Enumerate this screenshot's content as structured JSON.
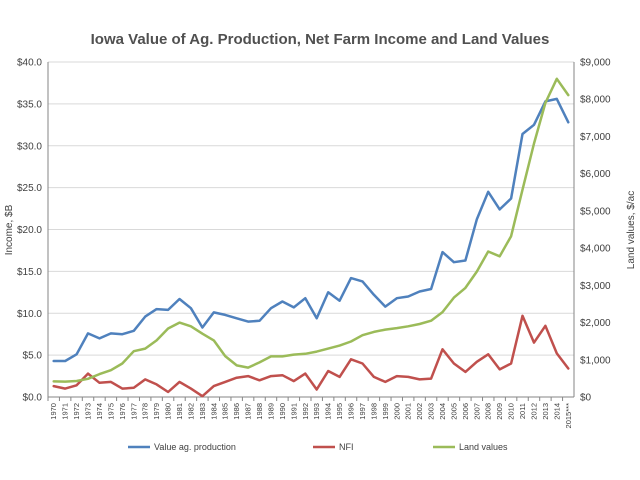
{
  "chart_data": {
    "type": "line",
    "title": "Iowa Value of Ag. Production, Net Farm Income and Land Values",
    "ylabel_left": "Income, $B",
    "ylabel_right": "Land values, $/ac",
    "ylim_left": [
      0,
      40
    ],
    "ylim_right": [
      0,
      9000
    ],
    "yticks_left": [
      "$0.0",
      "$5.0",
      "$10.0",
      "$15.0",
      "$20.0",
      "$25.0",
      "$30.0",
      "$35.0",
      "$40.0"
    ],
    "yticks_right": [
      "$0",
      "$1,000",
      "$2,000",
      "$3,000",
      "$4,000",
      "$5,000",
      "$6,000",
      "$7,000",
      "$8,000",
      "$9,000"
    ],
    "grid": true,
    "legend_position": "bottom",
    "categories": [
      "1970",
      "1971",
      "1972",
      "1973",
      "1974",
      "1975",
      "1976",
      "1977",
      "1978",
      "1979",
      "1980",
      "1981",
      "1982",
      "1983",
      "1984",
      "1985",
      "1986",
      "1987",
      "1988",
      "1989",
      "1990",
      "1991",
      "1992",
      "1993",
      "1994",
      "1995",
      "1996",
      "1997",
      "1998",
      "1999",
      "2000",
      "2001",
      "2002",
      "2003",
      "2004",
      "2005",
      "2006",
      "2007",
      "2008",
      "2009",
      "2010",
      "2011",
      "2012",
      "2013",
      "2014",
      "2015***"
    ],
    "series": [
      {
        "name": "Value ag. production",
        "axis": "left",
        "color": "#4f81bd",
        "values": [
          4.3,
          4.3,
          5.1,
          7.6,
          7.0,
          7.6,
          7.5,
          7.9,
          9.6,
          10.5,
          10.4,
          11.7,
          10.6,
          8.3,
          10.1,
          9.8,
          9.4,
          9.0,
          9.1,
          10.6,
          11.4,
          10.7,
          11.8,
          9.4,
          12.5,
          11.5,
          14.2,
          13.8,
          12.2,
          10.8,
          11.8,
          12.0,
          12.6,
          12.9,
          17.3,
          16.1,
          16.3,
          21.2,
          24.5,
          22.4,
          23.7,
          31.4,
          32.5,
          35.3,
          35.6,
          32.8
        ]
      },
      {
        "name": "NFI",
        "axis": "left",
        "color": "#c0504d",
        "values": [
          1.3,
          1.0,
          1.4,
          2.8,
          1.7,
          1.8,
          1.0,
          1.1,
          2.1,
          1.5,
          0.6,
          1.8,
          1.0,
          0.1,
          1.3,
          1.8,
          2.3,
          2.5,
          2.0,
          2.5,
          2.6,
          1.9,
          2.8,
          0.9,
          3.1,
          2.4,
          4.5,
          4.0,
          2.4,
          1.8,
          2.5,
          2.4,
          2.1,
          2.2,
          5.7,
          4.0,
          3.0,
          4.2,
          5.1,
          3.3,
          4.0,
          9.7,
          6.5,
          8.5,
          5.2,
          3.4
        ]
      },
      {
        "name": "Land values",
        "axis": "right",
        "color": "#9bbb59",
        "values": [
          419,
          415,
          430,
          490,
          615,
          720,
          900,
          1230,
          1300,
          1520,
          1840,
          2000,
          1900,
          1700,
          1520,
          1100,
          850,
          790,
          930,
          1090,
          1090,
          1140,
          1160,
          1220,
          1300,
          1380,
          1490,
          1660,
          1750,
          1810,
          1850,
          1900,
          1960,
          2050,
          2280,
          2670,
          2930,
          3370,
          3910,
          3780,
          4320,
          5570,
          6810,
          7900,
          8550,
          8110
        ]
      }
    ]
  }
}
